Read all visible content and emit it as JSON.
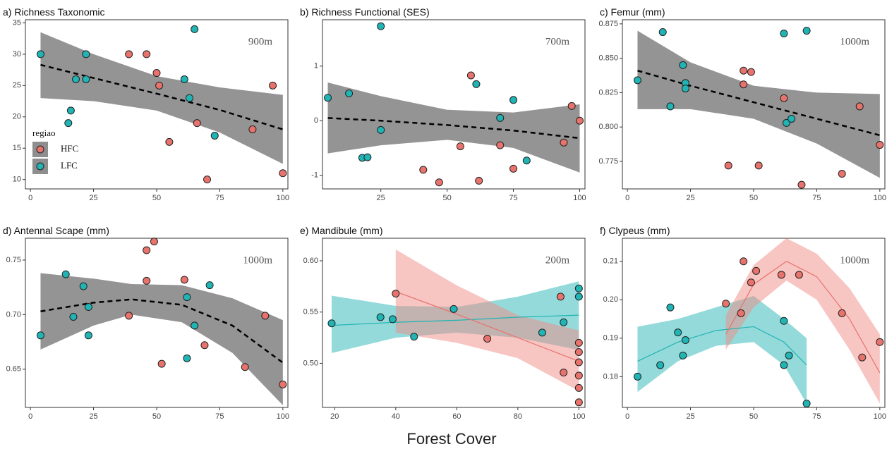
{
  "x_label": "Forest Cover",
  "chart_data": [
    {
      "type": "scatter",
      "title": "a) Richness Taxonomic",
      "annotation": "900m",
      "xlim": [
        -2,
        102
      ],
      "xticks": [
        0,
        25,
        50,
        75,
        100
      ],
      "ylim": [
        8.5,
        35.5
      ],
      "yticks": [
        10,
        15,
        20,
        25,
        30,
        35
      ],
      "legend": "bottom-left",
      "legend_title": "regiao",
      "series": [
        {
          "name": "HFC",
          "color": "#e8736c",
          "x": [
            39,
            46,
            50,
            51,
            55,
            66,
            70,
            88,
            96,
            100
          ],
          "values": [
            30,
            30,
            27,
            25,
            16,
            19,
            10,
            18,
            25,
            11
          ]
        },
        {
          "name": "LFC",
          "color": "#20b4b4",
          "x": [
            4,
            15,
            16,
            18,
            22,
            22,
            61,
            63,
            65,
            73
          ],
          "values": [
            30,
            19,
            21,
            26,
            26,
            30,
            26,
            23,
            34,
            17
          ]
        }
      ],
      "fits": [
        {
          "color": "#000000",
          "band_color": "#8e8e8e",
          "dashed": true,
          "x": [
            4,
            25,
            50,
            75,
            100
          ],
          "values": [
            28.3,
            26.2,
            23.7,
            21.1,
            18
          ],
          "lower": [
            23,
            22.5,
            21,
            17.5,
            12.5
          ],
          "upper": [
            33.5,
            30,
            26.5,
            24.7,
            23.5
          ]
        }
      ]
    },
    {
      "type": "scatter",
      "title": "b) Richness Functional (SES)",
      "annotation": "700m",
      "xlim": [
        3,
        102
      ],
      "xticks": [
        25,
        50,
        75,
        100
      ],
      "ylim": [
        -1.25,
        1.85
      ],
      "yticks": [
        -1,
        0,
        1
      ],
      "series": [
        {
          "name": "HFC",
          "color": "#e8736c",
          "x": [
            41,
            47,
            55,
            59,
            62,
            70,
            75,
            94,
            97,
            100
          ],
          "values": [
            -0.9,
            -1.13,
            -0.47,
            0.83,
            -1.1,
            -0.45,
            -0.88,
            -0.4,
            0.27,
            0
          ]
        },
        {
          "name": "LFC",
          "color": "#20b4b4",
          "x": [
            5,
            13,
            18,
            20,
            25,
            25,
            61,
            70,
            75,
            80
          ],
          "values": [
            0.42,
            0.5,
            -0.68,
            -0.67,
            1.73,
            -0.17,
            0.67,
            0.05,
            0.38,
            -0.73
          ]
        }
      ],
      "fits": [
        {
          "color": "#000000",
          "band_color": "#8e8e8e",
          "dashed": true,
          "x": [
            5,
            25,
            50,
            75,
            100
          ],
          "values": [
            0.05,
            0,
            -0.08,
            -0.18,
            -0.32
          ],
          "lower": [
            -0.6,
            -0.45,
            -0.35,
            -0.5,
            -0.95
          ],
          "upper": [
            0.7,
            0.45,
            0.2,
            0.15,
            0.3
          ]
        }
      ]
    },
    {
      "type": "scatter",
      "title": "c) Femur (mm)",
      "annotation": "1000m",
      "xlim": [
        -2,
        102
      ],
      "xticks": [
        0,
        25,
        50,
        75,
        100
      ],
      "ylim": [
        0.755,
        0.878
      ],
      "yticks": [
        0.775,
        {
          "value": 0.8,
          "label": "0.800"
        },
        0.825,
        {
          "value": 0.85,
          "label": "0.850"
        },
        0.875
      ],
      "series": [
        {
          "name": "HFC",
          "color": "#e8736c",
          "x": [
            40,
            46,
            46,
            49,
            52,
            62,
            69,
            85,
            92,
            100
          ],
          "values": [
            0.772,
            0.841,
            0.831,
            0.84,
            0.772,
            0.821,
            0.758,
            0.766,
            0.815,
            0.787
          ]
        },
        {
          "name": "LFC",
          "color": "#20b4b4",
          "x": [
            4,
            14,
            17,
            22,
            23,
            23,
            62,
            63,
            65,
            71
          ],
          "values": [
            0.834,
            0.869,
            0.815,
            0.845,
            0.832,
            0.828,
            0.868,
            0.803,
            0.806,
            0.87
          ]
        }
      ],
      "fits": [
        {
          "color": "#000000",
          "band_color": "#8e8e8e",
          "dashed": true,
          "x": [
            4,
            25,
            50,
            75,
            100
          ],
          "values": [
            0.841,
            0.83,
            0.818,
            0.806,
            0.794
          ],
          "lower": [
            0.813,
            0.813,
            0.806,
            0.788,
            0.763
          ],
          "upper": [
            0.87,
            0.847,
            0.83,
            0.825,
            0.824
          ]
        }
      ]
    },
    {
      "type": "scatter",
      "title": "d) Antennal Scape (mm)",
      "annotation": "1000m",
      "xlim": [
        -2,
        102
      ],
      "xticks": [
        0,
        25,
        50,
        75,
        100
      ],
      "ylim": [
        0.615,
        0.77
      ],
      "yticks": [
        0.65,
        {
          "value": 0.7,
          "label": "0.70"
        },
        0.75
      ],
      "series": [
        {
          "name": "HFC",
          "color": "#e8736c",
          "x": [
            39,
            46,
            46,
            49,
            52,
            61,
            69,
            85,
            93,
            100
          ],
          "values": [
            0.699,
            0.731,
            0.759,
            0.767,
            0.655,
            0.732,
            0.672,
            0.652,
            0.699,
            0.636
          ]
        },
        {
          "name": "LFC",
          "color": "#20b4b4",
          "x": [
            4,
            14,
            17,
            21,
            23,
            23,
            62,
            62,
            65,
            71
          ],
          "values": [
            0.681,
            0.737,
            0.698,
            0.726,
            0.707,
            0.681,
            0.716,
            0.66,
            0.69,
            0.727
          ]
        }
      ],
      "fits": [
        {
          "color": "#000000",
          "band_color": "#8e8e8e",
          "dashed": true,
          "x": [
            4,
            25,
            40,
            60,
            80,
            100
          ],
          "values": [
            0.703,
            0.711,
            0.714,
            0.709,
            0.69,
            0.656
          ],
          "lower": [
            0.668,
            0.69,
            0.7,
            0.693,
            0.665,
            0.617
          ],
          "upper": [
            0.738,
            0.733,
            0.728,
            0.727,
            0.715,
            0.695
          ]
        }
      ]
    },
    {
      "type": "scatter",
      "title": "e) Mandibule (mm)",
      "annotation": "200m",
      "xlim": [
        16,
        102
      ],
      "xticks": [
        20,
        40,
        60,
        80,
        100
      ],
      "ylim": [
        0.457,
        0.622
      ],
      "yticks": [
        {
          "value": 0.5,
          "label": "0.50"
        },
        0.55,
        {
          "value": 0.6,
          "label": "0.60"
        }
      ],
      "series": [
        {
          "name": "HFC",
          "color": "#e8736c",
          "x": [
            40,
            70,
            94,
            95,
            100,
            100,
            100,
            100,
            100,
            100
          ],
          "values": [
            0.568,
            0.524,
            0.565,
            0.491,
            0.52,
            0.511,
            0.501,
            0.488,
            0.476,
            0.462
          ]
        },
        {
          "name": "LFC",
          "color": "#20b4b4",
          "x": [
            19,
            35,
            39,
            46,
            59,
            88,
            95,
            100,
            100
          ],
          "values": [
            0.539,
            0.545,
            0.543,
            0.526,
            0.553,
            0.53,
            0.54,
            0.565,
            0.573
          ]
        }
      ],
      "fits": [
        {
          "color": "#20b4b4",
          "band_color": "#2bb5b5",
          "dashed": false,
          "x": [
            19,
            40,
            60,
            80,
            100
          ],
          "values": [
            0.537,
            0.54,
            0.542,
            0.545,
            0.547
          ],
          "lower": [
            0.51,
            0.525,
            0.53,
            0.525,
            0.513
          ],
          "upper": [
            0.566,
            0.556,
            0.555,
            0.565,
            0.58
          ]
        },
        {
          "color": "#e8736c",
          "band_color": "#f08c86",
          "dashed": false,
          "x": [
            40,
            60,
            80,
            100
          ],
          "values": [
            0.57,
            0.548,
            0.525,
            0.502
          ],
          "lower": [
            0.53,
            0.52,
            0.505,
            0.473
          ],
          "upper": [
            0.611,
            0.576,
            0.547,
            0.532
          ]
        }
      ]
    },
    {
      "type": "scatter",
      "title": "f) Clypeus (mm)",
      "annotation": "1000m",
      "xlim": [
        -2,
        102
      ],
      "xticks": [
        0,
        25,
        50,
        75,
        100
      ],
      "ylim": [
        0.172,
        0.216
      ],
      "yticks": [
        0.18,
        0.19,
        {
          "value": 0.2,
          "label": "0.20"
        },
        0.21
      ],
      "series": [
        {
          "name": "HFC",
          "color": "#e8736c",
          "x": [
            39,
            45,
            46,
            49,
            51,
            61,
            68,
            85,
            93,
            100
          ],
          "values": [
            0.199,
            0.1965,
            0.21,
            0.2045,
            0.2075,
            0.2065,
            0.2065,
            0.1965,
            0.185,
            0.189
          ]
        },
        {
          "name": "LFC",
          "color": "#20b4b4",
          "x": [
            4,
            13,
            17,
            20,
            22,
            23,
            62,
            62,
            64,
            71
          ],
          "values": [
            0.18,
            0.183,
            0.198,
            0.1915,
            0.1855,
            0.1895,
            0.183,
            0.1945,
            0.1855,
            0.173
          ]
        }
      ],
      "fits": [
        {
          "color": "#20b4b4",
          "band_color": "#2bb5b5",
          "dashed": false,
          "x": [
            4,
            20,
            35,
            50,
            62,
            71
          ],
          "values": [
            0.184,
            0.189,
            0.192,
            0.193,
            0.189,
            0.183
          ],
          "lower": [
            0.176,
            0.184,
            0.188,
            0.189,
            0.183,
            0.173
          ],
          "upper": [
            0.193,
            0.195,
            0.198,
            0.201,
            0.195,
            0.19
          ]
        },
        {
          "color": "#e8736c",
          "band_color": "#f08c86",
          "dashed": false,
          "x": [
            39,
            50,
            63,
            75,
            88,
            100
          ],
          "values": [
            0.191,
            0.204,
            0.21,
            0.206,
            0.195,
            0.181
          ],
          "lower": [
            0.187,
            0.198,
            0.205,
            0.2,
            0.187,
            0.173
          ],
          "upper": [
            0.196,
            0.209,
            0.216,
            0.212,
            0.203,
            0.191
          ]
        }
      ]
    }
  ]
}
